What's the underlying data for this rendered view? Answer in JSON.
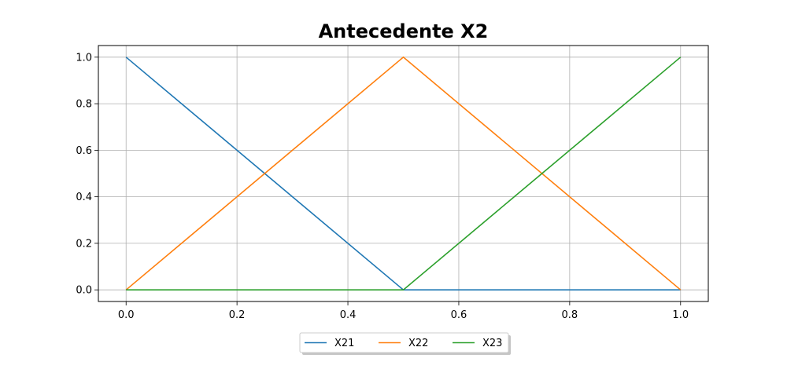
{
  "chart_data": {
    "type": "line",
    "title": "Antecedente X2",
    "xlabel": "",
    "ylabel": "",
    "xlim": [
      -0.05,
      1.05
    ],
    "ylim": [
      -0.05,
      1.05
    ],
    "xticks": [
      0.0,
      0.2,
      0.4,
      0.6,
      0.8,
      1.0
    ],
    "yticks": [
      0.0,
      0.2,
      0.4,
      0.6,
      0.8,
      1.0
    ],
    "xtick_labels": [
      "0.0",
      "0.2",
      "0.4",
      "0.6",
      "0.8",
      "1.0"
    ],
    "ytick_labels": [
      "0.0",
      "0.2",
      "0.4",
      "0.6",
      "0.8",
      "1.0"
    ],
    "grid": true,
    "legend_position": "below-center",
    "series": [
      {
        "name": "X21",
        "color": "#1f77b4",
        "x": [
          0.0,
          0.5,
          1.0
        ],
        "y": [
          1.0,
          0.0,
          0.0
        ]
      },
      {
        "name": "X22",
        "color": "#ff7f0e",
        "x": [
          0.0,
          0.5,
          1.0
        ],
        "y": [
          0.0,
          1.0,
          0.0
        ]
      },
      {
        "name": "X23",
        "color": "#2ca02c",
        "x": [
          0.0,
          0.5,
          1.0
        ],
        "y": [
          0.0,
          0.0,
          1.0
        ]
      }
    ]
  }
}
